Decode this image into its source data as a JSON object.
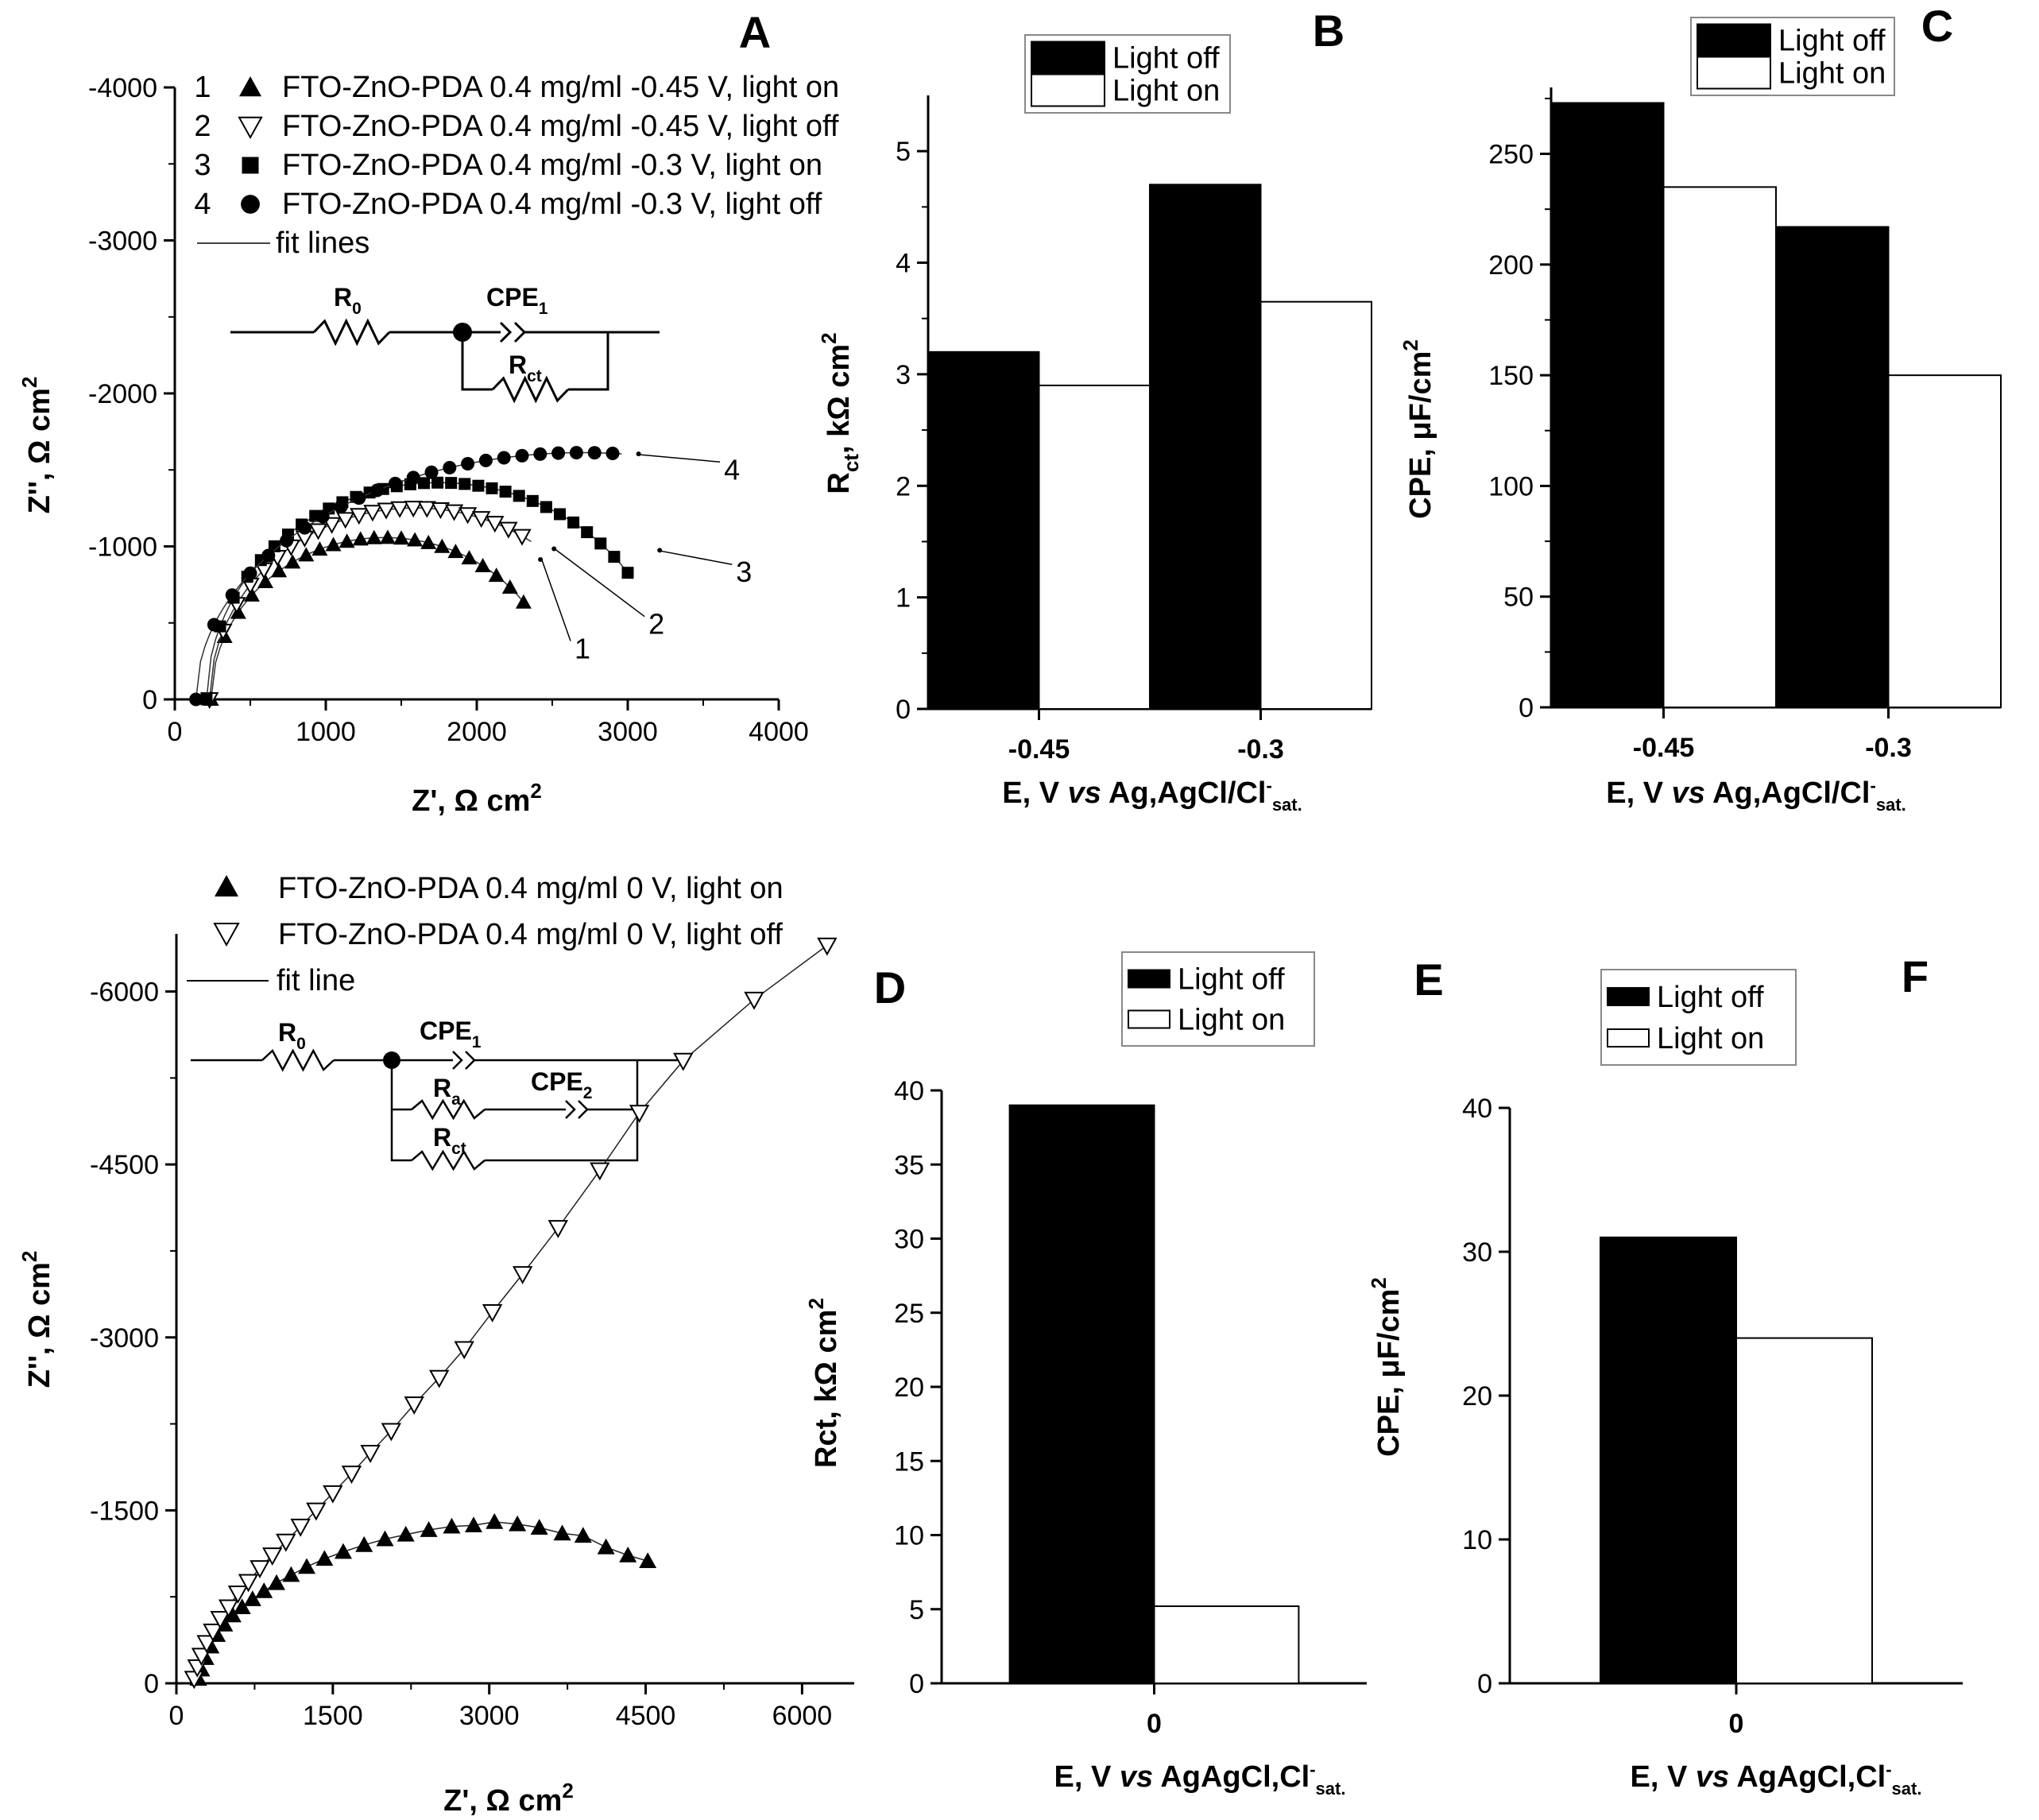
{
  "chart_data": [
    {
      "panel": "A",
      "type": "scatter",
      "xlabel": "Z', Ω cm",
      "xlabel_sup": "2",
      "ylabel": "Z'', Ω cm",
      "ylabel_sup": "2",
      "xlim": [
        0,
        4000
      ],
      "ylim": [
        0,
        -4000
      ],
      "xticks": [
        "0",
        "1000",
        "2000",
        "3000",
        "4000"
      ],
      "yticks": [
        "0",
        "-1000",
        "-2000",
        "-3000",
        "-4000"
      ],
      "legend": [
        {
          "num": "1",
          "marker": "triangle-filled",
          "label": "FTO-ZnO-PDA 0.4 mg/ml -0.45 V, light on"
        },
        {
          "num": "2",
          "marker": "triangle-open-down",
          "label": "FTO-ZnO-PDA 0.4 mg/ml -0.45 V, light off"
        },
        {
          "num": "3",
          "marker": "square-filled",
          "label": "FTO-ZnO-PDA 0.4 mg/ml -0.3 V, light on"
        },
        {
          "num": "4",
          "marker": "circle-filled",
          "label": "FTO-ZnO-PDA 0.4 mg/ml -0.3 V, light off"
        },
        {
          "num": "",
          "marker": "line",
          "label": "fit lines"
        }
      ],
      "circuit": {
        "r0": "R",
        "r0_sub": "0",
        "cpe": "CPE",
        "cpe_sub": "1",
        "rct": "R",
        "rct_sub": "ct"
      },
      "series": [
        {
          "name": "1",
          "marker": "triangle-filled",
          "center_x": 1390,
          "radius": 1150,
          "max_x": 2350
        },
        {
          "name": "2",
          "marker": "triangle-open-down",
          "center_x": 1590,
          "radius": 1360,
          "max_x": 2380
        },
        {
          "name": "3",
          "marker": "square-filled",
          "center_x": 1750,
          "radius": 1540,
          "max_x": 3050
        },
        {
          "name": "4",
          "marker": "circle-filled",
          "center_x": 2700,
          "radius": 2560,
          "max_x": 2980
        }
      ],
      "curve_labels": [
        {
          "label": "1",
          "x": 2700,
          "y": -330,
          "target_x": 2390,
          "target_y": -930
        },
        {
          "label": "2",
          "x": 3190,
          "y": -490,
          "target_x": 2480,
          "target_y": -1000
        },
        {
          "label": "3",
          "x": 3770,
          "y": -830,
          "target_x": 3180,
          "target_y": -990
        },
        {
          "label": "4",
          "x": 3690,
          "y": -1500,
          "target_x": 3040,
          "target_y": -1620
        }
      ]
    },
    {
      "panel": "B",
      "type": "bar",
      "categories": [
        "-0.45",
        "-0.3"
      ],
      "series": [
        {
          "name": "Light off",
          "values": [
            3.2,
            4.7
          ]
        },
        {
          "name": "Light on",
          "values": [
            2.9,
            3.65
          ]
        }
      ],
      "ylim": [
        0,
        5.5
      ],
      "yticks": [
        "0",
        "1",
        "2",
        "3",
        "4",
        "5"
      ],
      "ylabel": "R",
      "ylabel_sub": "ct",
      "ylabel_tail": ", kΩ cm",
      "ylabel_sup": "2",
      "xlabel": "E, V",
      "xlabel_it": "vs",
      "xlabel_tail": "Ag,AgCl/Cl",
      "xlabel_sup": "-",
      "xlabel_sub": "sat."
    },
    {
      "panel": "C",
      "type": "bar",
      "categories": [
        "-0.45",
        "-0.3"
      ],
      "series": [
        {
          "name": "Light off",
          "values": [
            273,
            217
          ]
        },
        {
          "name": "Light on",
          "values": [
            235,
            150
          ]
        }
      ],
      "ylim": [
        0,
        280
      ],
      "yticks": [
        "0",
        "50",
        "100",
        "150",
        "200",
        "250"
      ],
      "ylabel": "CPE, μF/cm",
      "ylabel_sup": "2",
      "xlabel": "E, V",
      "xlabel_it": "vs",
      "xlabel_tail": "Ag,AgCl/Cl",
      "xlabel_sup": "-",
      "xlabel_sub": "sat."
    },
    {
      "panel": "",
      "type": "scatter",
      "xlabel": "Z', Ω cm",
      "xlabel_sup": "2",
      "ylabel": "Z'', Ω cm",
      "ylabel_sup": "2",
      "xlim": [
        0,
        6500
      ],
      "ylim": [
        0,
        -6500
      ],
      "xticks": [
        "0",
        "1500",
        "3000",
        "4500",
        "6000"
      ],
      "yticks": [
        "0",
        "-1500",
        "-3000",
        "-4500",
        "-6000"
      ],
      "legend": [
        {
          "marker": "triangle-filled",
          "label": "FTO-ZnO-PDA 0.4 mg/ml 0 V, light on"
        },
        {
          "marker": "triangle-open-down",
          "label": "FTO-ZnO-PDA 0.4 mg/ml 0 V, light off"
        },
        {
          "marker": "line",
          "label": "fit line"
        }
      ],
      "circuit": {
        "r0": "R",
        "r0_sub": "0",
        "cpe1": "CPE",
        "cpe1_sub": "1",
        "ra": "R",
        "ra_sub": "a",
        "cpe2": "CPE",
        "cpe2_sub": "2",
        "rct": "R",
        "rct_sub": "ct"
      },
      "series": [
        {
          "name": "light on",
          "marker": "triangle-filled",
          "x": [
            210,
            240,
            280,
            330,
            390,
            460,
            540,
            630,
            730,
            840,
            960,
            1100,
            1250,
            1420,
            1600,
            1800,
            2000,
            2200,
            2420,
            2640,
            2850,
            3050,
            3270,
            3480,
            3700,
            3900,
            4120,
            4330,
            4520
          ],
          "y": [
            -40,
            -120,
            -220,
            -320,
            -420,
            -510,
            -590,
            -660,
            -730,
            -800,
            -870,
            -940,
            -1010,
            -1080,
            -1140,
            -1200,
            -1250,
            -1290,
            -1330,
            -1360,
            -1370,
            -1400,
            -1380,
            -1350,
            -1300,
            -1280,
            -1180,
            -1110,
            -1060
          ]
        },
        {
          "name": "light off",
          "marker": "triangle-open-down",
          "x": [
            170,
            200,
            240,
            290,
            350,
            420,
            500,
            590,
            690,
            800,
            920,
            1050,
            1190,
            1340,
            1500,
            1680,
            1860,
            2060,
            2280,
            2520,
            2760,
            3030,
            3320,
            3660,
            4060,
            4440,
            4860,
            5540,
            6240
          ],
          "y": [
            -40,
            -140,
            -240,
            -350,
            -450,
            -560,
            -660,
            -780,
            -880,
            -1000,
            -1110,
            -1230,
            -1360,
            -1500,
            -1650,
            -1820,
            -2000,
            -2190,
            -2420,
            -2650,
            -2900,
            -3220,
            -3550,
            -3950,
            -4450,
            -4950,
            -5400,
            -5930,
            -6400
          ]
        }
      ]
    },
    {
      "panel": "D",
      "type": "bar",
      "categories": [
        "0"
      ],
      "series": [
        {
          "name": "Light off",
          "values": [
            39
          ]
        },
        {
          "name": "Light on",
          "values": [
            5.2
          ]
        }
      ],
      "ylim": [
        0,
        40
      ],
      "yticks": [
        "0",
        "5",
        "10",
        "15",
        "20",
        "25",
        "30",
        "35",
        "40"
      ],
      "ylabel": "Rct, kΩ cm",
      "ylabel_sup": "2",
      "xlabel": "E, V",
      "xlabel_it": "vs",
      "xlabel_tail": "AgAgCl,Cl",
      "xlabel_sup": "-",
      "xlabel_sub": "sat."
    },
    {
      "panel": "E",
      "type": "bar",
      "categories": [],
      "series": []
    },
    {
      "panel": "F",
      "type": "bar",
      "categories": [
        "0"
      ],
      "series": [
        {
          "name": "Light off",
          "values": [
            31
          ]
        },
        {
          "name": "Light on",
          "values": [
            24
          ]
        }
      ],
      "ylim": [
        0,
        40
      ],
      "yticks": [
        "0",
        "10",
        "20",
        "30",
        "40"
      ],
      "ylabel": "CPE, μF/cm",
      "ylabel_sup": "2",
      "xlabel": "E, V",
      "xlabel_it": "vs",
      "xlabel_tail": "AgAgCl,Cl",
      "xlabel_sup": "-",
      "xlabel_sub": "sat."
    }
  ]
}
